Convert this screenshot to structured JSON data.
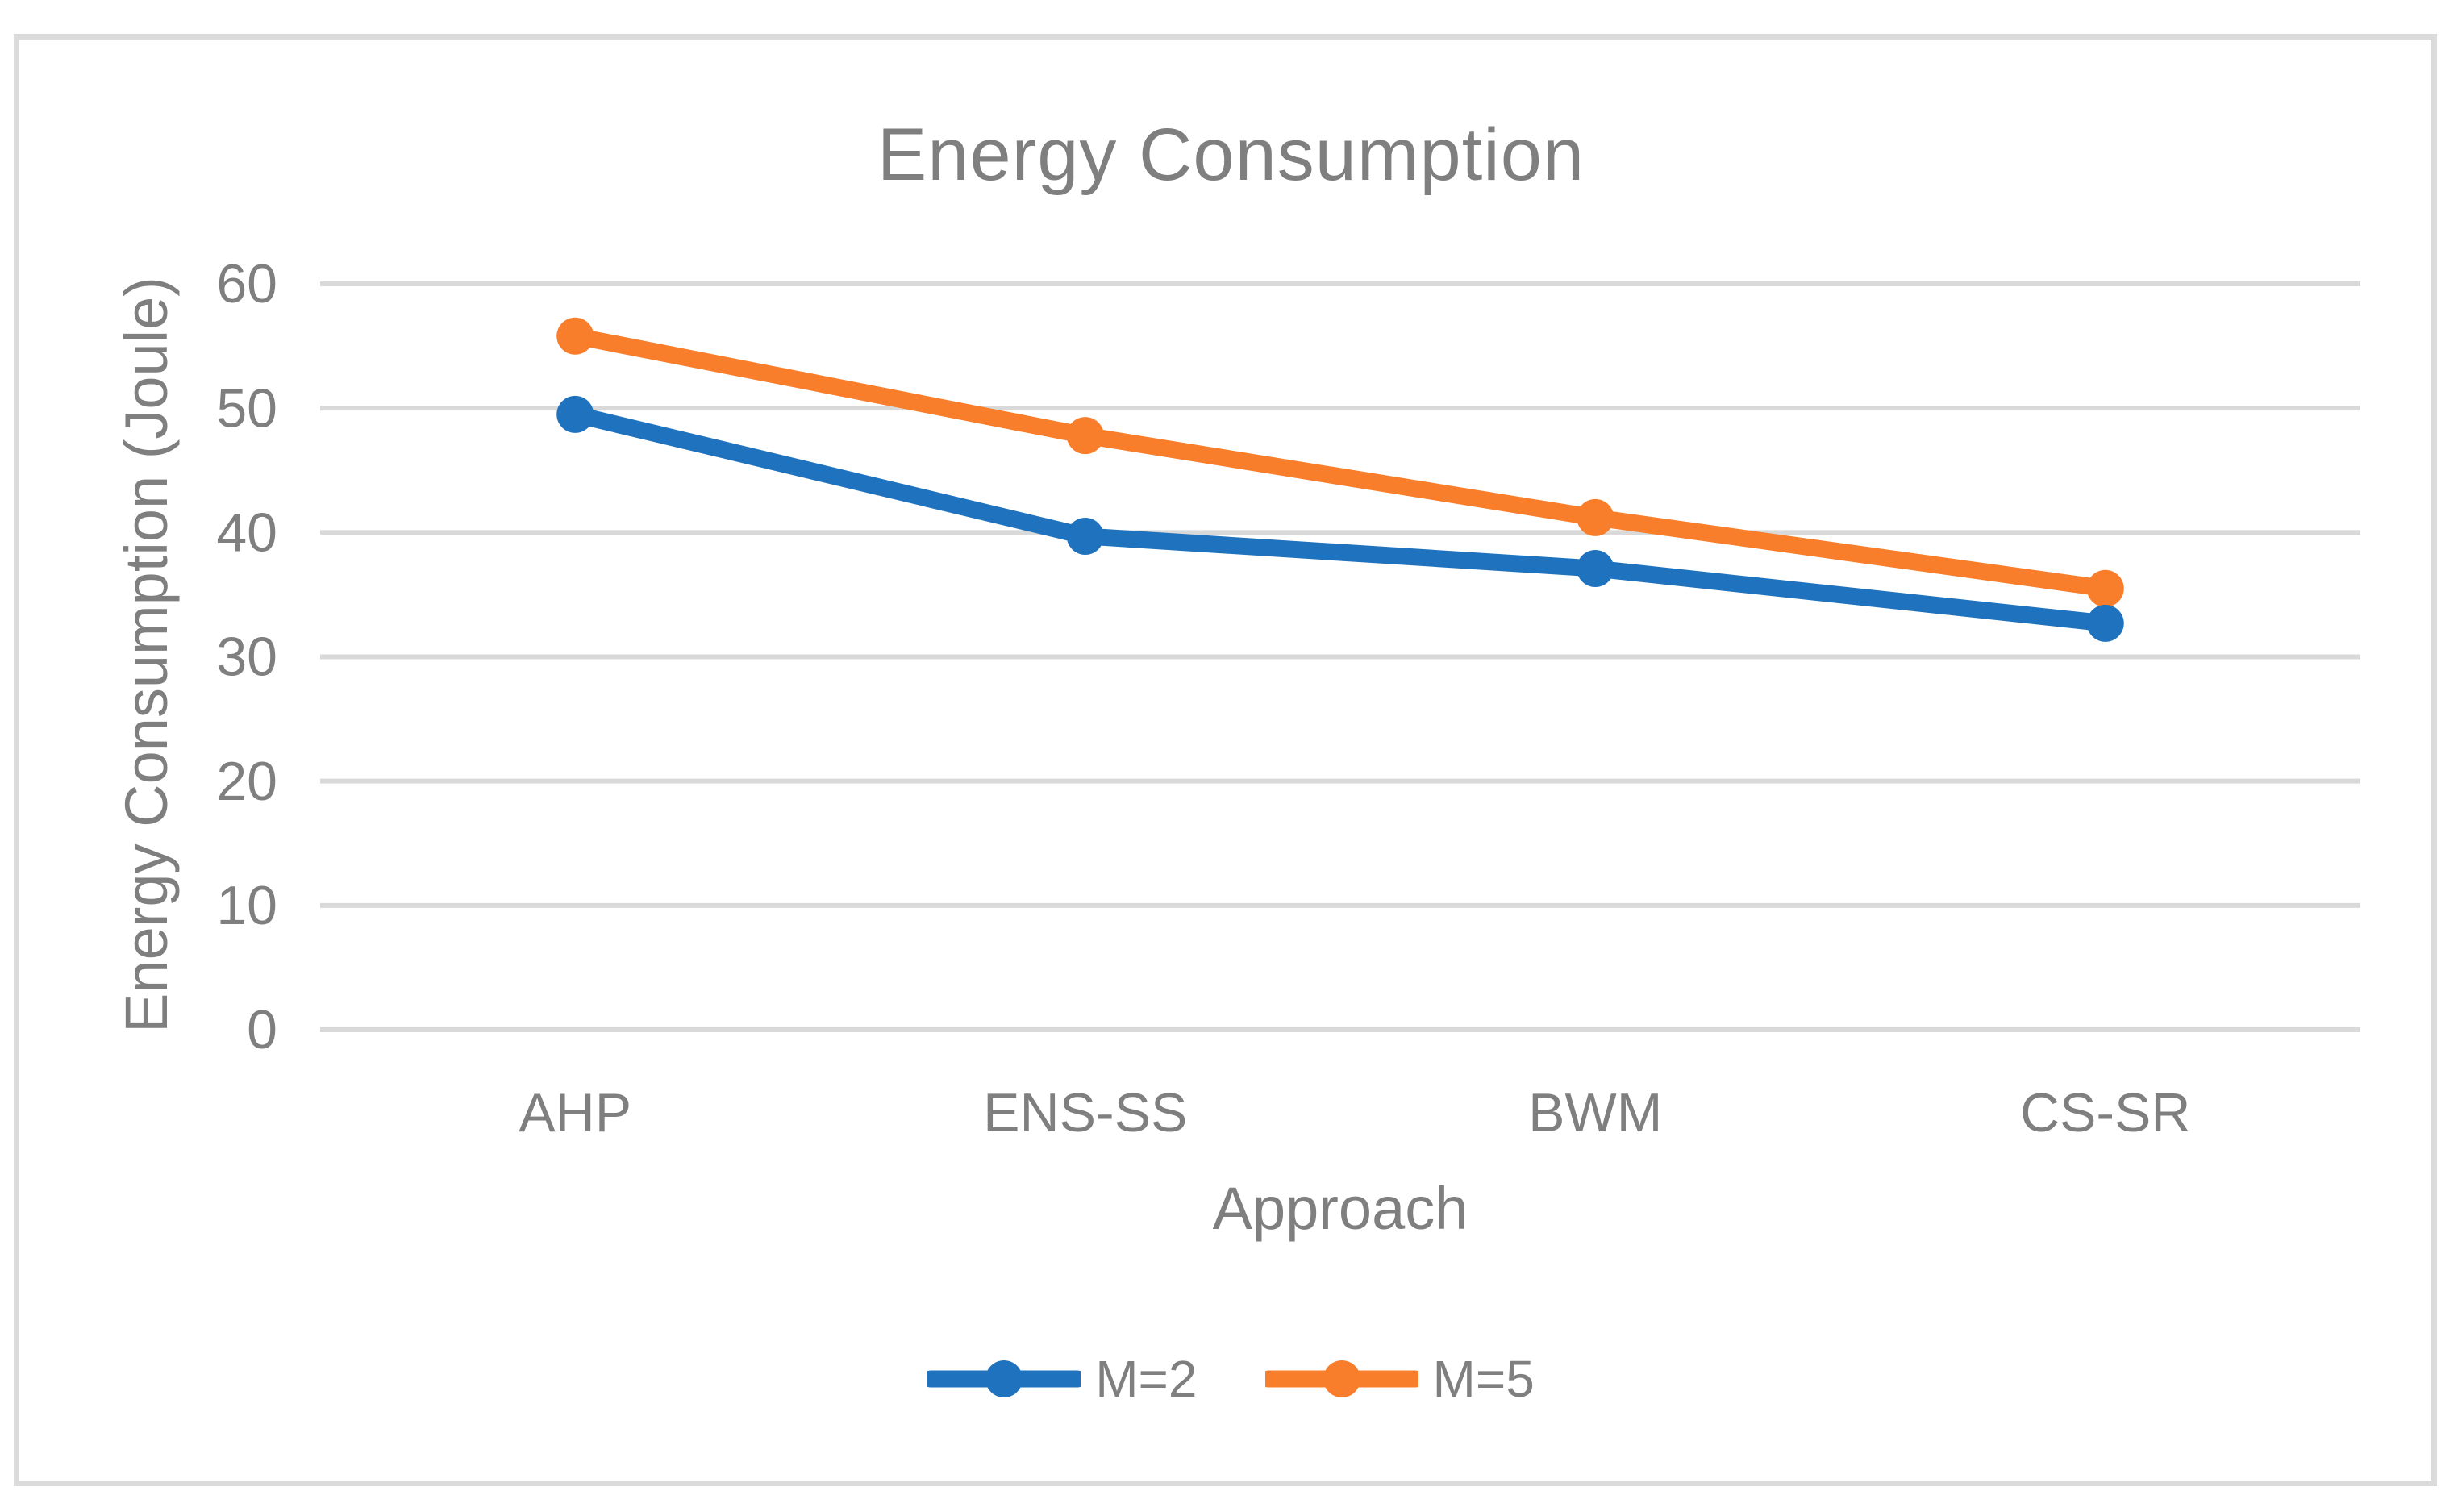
{
  "chart_data": {
    "type": "line",
    "title": "Energy Consumption",
    "xlabel": "Approach",
    "ylabel": "Energy Consumption (Joule)",
    "categories": [
      "AHP",
      "ENS-SS",
      "BWM",
      "CS-SR"
    ],
    "series": [
      {
        "name": "M=5",
        "color": "#F87E2B",
        "values": [
          55.8,
          47.8,
          41.2,
          35.5
        ]
      },
      {
        "name": "M=2",
        "color": "#1F72BD",
        "values": [
          49.5,
          39.7,
          37.1,
          32.7
        ]
      }
    ],
    "legend_order": [
      "M=2",
      "M=5"
    ],
    "ylim": [
      0,
      60
    ],
    "yticks": [
      0,
      10,
      20,
      30,
      40,
      50,
      60
    ],
    "grid": true,
    "legend_position": "bottom-center",
    "colors": {
      "gridline": "#D9D9D9",
      "text": "#7F7F7F",
      "frame_border": "#DBDBDB",
      "background": "#FFFFFF"
    }
  }
}
